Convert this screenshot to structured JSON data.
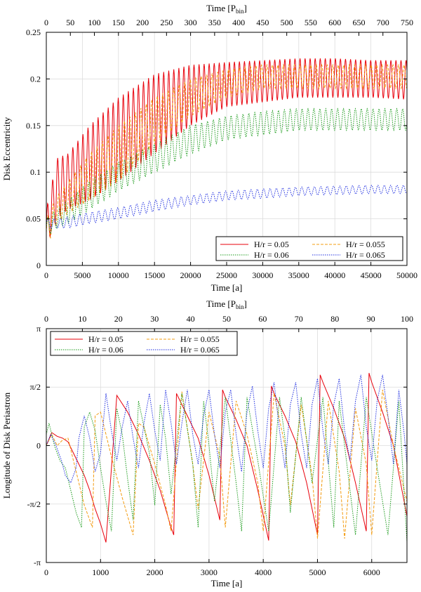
{
  "chart_data": [
    {
      "type": "line",
      "xlabel": "Time [a]",
      "x2label_main": "Time [P",
      "x2label_sub": "bin",
      "x2label_end": "]",
      "ylabel": "Disk Eccentricity",
      "xlim": [
        0,
        50000
      ],
      "ylim": [
        0,
        0.25
      ],
      "x2lim": [
        0,
        750
      ],
      "xticks": [
        "0",
        "5000",
        "10000",
        "15000",
        "20000",
        "25000",
        "30000",
        "35000",
        "40000",
        "45000",
        "50000"
      ],
      "x2ticks": [
        "0",
        "50",
        "100",
        "150",
        "200",
        "250",
        "300",
        "350",
        "400",
        "450",
        "500",
        "550",
        "600",
        "650",
        "700",
        "750"
      ],
      "yticks": [
        "0",
        "0.05",
        "0.1",
        "0.15",
        "0.2",
        "0.25"
      ],
      "grid": true,
      "legend_position": "bottom-right",
      "series": [
        {
          "name": "H/r = 0.05",
          "color": "#e8000b",
          "dash": "solid",
          "period": 700,
          "envelope_x": [
            0,
            1500,
            3000,
            6000,
            10000,
            15000,
            20000,
            25000,
            30000,
            35000,
            40000,
            45000,
            50000
          ],
          "envelope_lo": [
            0.02,
            0.05,
            0.06,
            0.07,
            0.09,
            0.12,
            0.15,
            0.17,
            0.175,
            0.18,
            0.18,
            0.18,
            0.178
          ],
          "envelope_hi": [
            0.06,
            0.115,
            0.12,
            0.15,
            0.18,
            0.205,
            0.215,
            0.218,
            0.22,
            0.222,
            0.222,
            0.22,
            0.22
          ]
        },
        {
          "name": "H/r = 0.055",
          "color": "#f39c12",
          "dash": "dashed",
          "period": 760,
          "envelope_x": [
            0,
            1500,
            3000,
            6000,
            10000,
            15000,
            20000,
            25000,
            30000,
            35000,
            40000,
            45000,
            50000
          ],
          "envelope_lo": [
            0.02,
            0.045,
            0.055,
            0.07,
            0.09,
            0.13,
            0.16,
            0.18,
            0.19,
            0.19,
            0.19,
            0.19,
            0.19
          ],
          "envelope_hi": [
            0.05,
            0.075,
            0.09,
            0.12,
            0.15,
            0.18,
            0.2,
            0.21,
            0.215,
            0.215,
            0.215,
            0.215,
            0.215
          ]
        },
        {
          "name": "H/r = 0.06",
          "color": "#1a9a1a",
          "dash": "dotted",
          "period": 820,
          "envelope_x": [
            0,
            1500,
            3000,
            6000,
            10000,
            15000,
            20000,
            25000,
            30000,
            35000,
            40000,
            45000,
            50000
          ],
          "envelope_lo": [
            0.03,
            0.04,
            0.045,
            0.06,
            0.08,
            0.1,
            0.12,
            0.135,
            0.14,
            0.145,
            0.145,
            0.145,
            0.145
          ],
          "envelope_hi": [
            0.05,
            0.06,
            0.07,
            0.09,
            0.11,
            0.13,
            0.15,
            0.16,
            0.165,
            0.168,
            0.168,
            0.168,
            0.168
          ]
        },
        {
          "name": "H/r = 0.065",
          "color": "#1f2ee0",
          "dash": "dotted",
          "period": 880,
          "envelope_x": [
            0,
            1500,
            3000,
            6000,
            10000,
            15000,
            20000,
            25000,
            30000,
            35000,
            40000,
            45000,
            50000
          ],
          "envelope_lo": [
            0.04,
            0.04,
            0.04,
            0.045,
            0.05,
            0.058,
            0.065,
            0.07,
            0.072,
            0.075,
            0.076,
            0.077,
            0.077
          ],
          "envelope_hi": [
            0.05,
            0.05,
            0.052,
            0.057,
            0.062,
            0.07,
            0.075,
            0.08,
            0.082,
            0.084,
            0.085,
            0.086,
            0.086
          ]
        }
      ]
    },
    {
      "type": "line",
      "xlabel": "Time [a]",
      "x2label_main": "Time [P",
      "x2label_sub": "bin",
      "x2label_end": "]",
      "ylabel": "Longitude of Disk Periastron",
      "xlim": [
        0,
        6650
      ],
      "ylim": [
        -3.14159,
        3.14159
      ],
      "x2lim": [
        0,
        100
      ],
      "xticks": [
        "0",
        "1000",
        "2000",
        "3000",
        "4000",
        "5000",
        "6000"
      ],
      "xtick_values": [
        0,
        1000,
        2000,
        3000,
        4000,
        5000,
        6000
      ],
      "x2ticks": [
        "0",
        "10",
        "20",
        "30",
        "40",
        "50",
        "60",
        "70",
        "80",
        "90",
        "100"
      ],
      "yticks": [
        "-π",
        "-π/2",
        "0",
        "π/2",
        "π"
      ],
      "ytick_values": [
        -3.14159,
        -1.5708,
        0,
        1.5708,
        3.14159
      ],
      "grid": true,
      "legend_position": "top-left",
      "series": [
        {
          "name": "H/r = 0.05",
          "color": "#e8000b",
          "dash": "solid",
          "x": [
            0,
            100,
            200,
            300,
            400,
            500,
            600,
            700,
            800,
            900,
            1000,
            1100,
            1300,
            1500,
            1700,
            1900,
            2100,
            2300,
            2350,
            2400,
            2600,
            2800,
            3000,
            3200,
            3250,
            3300,
            3500,
            3700,
            3900,
            4100,
            4150,
            4200,
            4400,
            4600,
            4800,
            5000,
            5050,
            5100,
            5300,
            5500,
            5700,
            5900,
            5950,
            6000,
            6200,
            6400,
            6650
          ],
          "y": [
            0,
            0.35,
            0.25,
            0.2,
            0.1,
            -0.2,
            -0.5,
            -0.8,
            -1.2,
            -1.7,
            -2.1,
            -2.6,
            1.35,
            0.9,
            0.3,
            -0.4,
            -1.2,
            -2.2,
            -2.4,
            1.4,
            0.8,
            0.2,
            -0.8,
            -2.0,
            1.5,
            1.3,
            0.7,
            0.0,
            -1.2,
            -2.55,
            1.6,
            1.4,
            0.8,
            0.1,
            -1.0,
            -2.4,
            1.9,
            1.7,
            1.0,
            0.2,
            -1.0,
            -2.3,
            1.95,
            1.7,
            0.9,
            0.0,
            -1.9
          ]
        },
        {
          "name": "H/r = 0.055",
          "color": "#f39c12",
          "dash": "dashed",
          "x": [
            0,
            100,
            200,
            300,
            400,
            500,
            600,
            700,
            850,
            900,
            1000,
            1200,
            1400,
            1600,
            1700,
            1800,
            2000,
            2200,
            2300,
            2500,
            2700,
            2800,
            3000,
            3200,
            3300,
            3500,
            3700,
            3900,
            4000,
            4200,
            4400,
            4500,
            4700,
            4900,
            5000,
            5200,
            5400,
            5500,
            5700,
            5900,
            6000,
            6200,
            6400,
            6650
          ],
          "y": [
            0,
            0.3,
            0.0,
            0.15,
            0.2,
            -0.4,
            -1.0,
            -1.6,
            -2.2,
            0.8,
            0.9,
            -0.3,
            -1.4,
            -2.4,
            0.6,
            0.5,
            -0.5,
            -1.6,
            -2.3,
            1.45,
            -0.5,
            -1.7,
            0.9,
            -0.3,
            -2.2,
            1.2,
            0.3,
            -1.0,
            -2.3,
            1.4,
            0.0,
            -1.6,
            1.1,
            -0.8,
            -2.5,
            1.2,
            -0.7,
            -2.5,
            1.0,
            -0.5,
            -2.4,
            1.5,
            0.0,
            -1.5
          ]
        },
        {
          "name": "H/r = 0.06",
          "color": "#1a9a1a",
          "dash": "dotted",
          "x": [
            0,
            50,
            150,
            250,
            350,
            450,
            550,
            650,
            700,
            800,
            900,
            1000,
            1100,
            1200,
            1300,
            1400,
            1500,
            1600,
            1700,
            1900,
            2000,
            2100,
            2200,
            2300,
            2500,
            2700,
            2800,
            2900,
            3000,
            3100,
            3300,
            3500,
            3600,
            3700,
            3900,
            4100,
            4300,
            4400,
            4500,
            4700,
            4900,
            5100,
            5300,
            5400,
            5500,
            5700,
            5900,
            6100,
            6300,
            6500,
            6650
          ],
          "y": [
            0.3,
            0.6,
            0.0,
            -0.4,
            -0.6,
            -1.2,
            -1.8,
            -2.2,
            0.5,
            0.9,
            0.4,
            -0.6,
            -1.5,
            -2.3,
            1.0,
            0.3,
            -0.9,
            -2.0,
            1.2,
            -0.2,
            -1.6,
            1.1,
            0.2,
            -1.3,
            1.4,
            -0.5,
            -2.2,
            1.2,
            0.0,
            -1.5,
            1.3,
            -1.0,
            -2.3,
            1.3,
            -0.4,
            -2.3,
            1.3,
            0.2,
            -1.8,
            1.3,
            -1.0,
            1.3,
            -2.2,
            1.2,
            0.0,
            -2.4,
            1.3,
            -0.6,
            -2.4,
            1.2,
            -2.6
          ]
        },
        {
          "name": "H/r = 0.065",
          "color": "#1f2ee0",
          "dash": "dotted",
          "x": [
            0,
            80,
            180,
            280,
            350,
            450,
            550,
            600,
            700,
            800,
            900,
            1000,
            1100,
            1200,
            1300,
            1400,
            1500,
            1600,
            1700,
            1800,
            1900,
            2000,
            2100,
            2200,
            2300,
            2400,
            2500,
            2600,
            2700,
            2800,
            2900,
            3000,
            3100,
            3200,
            3300,
            3400,
            3500,
            3600,
            3700,
            3800,
            3900,
            4000,
            4100,
            4200,
            4300,
            4400,
            4500,
            4600,
            4700,
            4800,
            4900,
            5000,
            5100,
            5200,
            5300,
            5400,
            5500,
            5600,
            5700,
            5800,
            5900,
            6000,
            6100,
            6200,
            6300,
            6400,
            6500,
            6600,
            6650
          ],
          "y": [
            0,
            0.3,
            0.0,
            -0.4,
            -0.8,
            -1.0,
            -0.6,
            0.2,
            0.8,
            0.2,
            -0.7,
            -0.2,
            1.4,
            0.4,
            -0.4,
            0.5,
            1.2,
            0.2,
            -0.6,
            0.6,
            1.4,
            0.4,
            -0.4,
            1.5,
            0.6,
            -0.5,
            0.6,
            1.5,
            0.3,
            -0.5,
            0.8,
            1.5,
            0.3,
            -0.6,
            0.9,
            1.5,
            0.3,
            -0.7,
            0.9,
            1.6,
            0.4,
            -0.6,
            1.0,
            1.7,
            0.4,
            -0.6,
            1.1,
            1.7,
            0.3,
            -0.6,
            1.1,
            1.8,
            0.4,
            -0.5,
            1.1,
            1.8,
            0.4,
            -0.4,
            1.2,
            1.9,
            0.5,
            -0.4,
            1.2,
            1.9,
            0.8,
            -0.5,
            1.5,
            0.3,
            -0.5
          ]
        }
      ]
    }
  ]
}
